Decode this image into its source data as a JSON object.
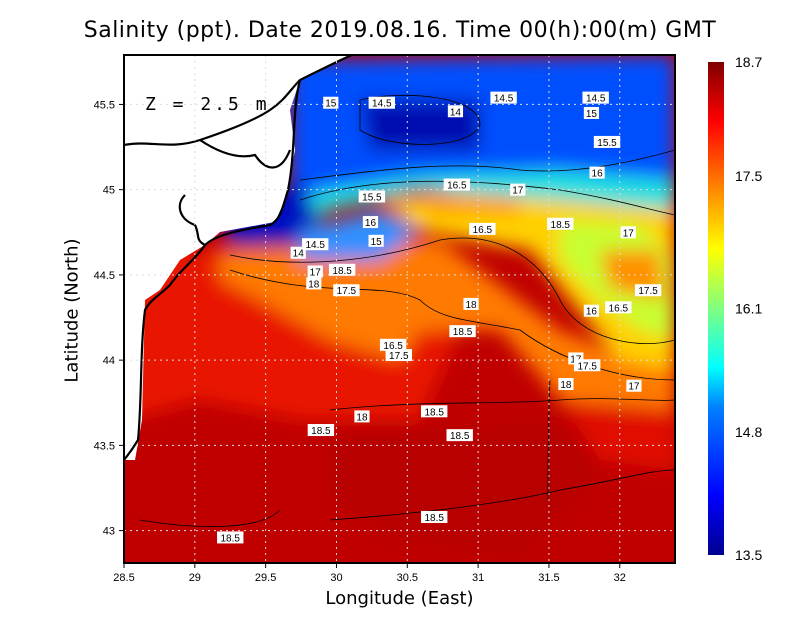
{
  "chart_data": {
    "type": "heatmap",
    "title": "Salinity (ppt). Date 2019.08.16. Time 00(h):00(m) GMT",
    "xlabel": "Longitude (East)",
    "ylabel": "Latitude (North)",
    "annotation": "Z = 2.5 m",
    "xlim": [
      28.5,
      32.39
    ],
    "ylim": [
      42.81,
      45.79
    ],
    "xticks": [
      "28.5",
      "29",
      "29.5",
      "30",
      "30.5",
      "31",
      "31.5",
      "32"
    ],
    "yticks": [
      "43",
      "43.5",
      "44",
      "44.5",
      "45",
      "45.5"
    ],
    "grid": true,
    "colorbar": {
      "range": [
        13.5,
        18.7
      ],
      "tick_labels": [
        "18.7",
        "17.5",
        "16.1",
        "14.8",
        "13.5"
      ],
      "colormap": [
        "#00008f",
        "#0000ff",
        "#0080ff",
        "#00ffff",
        "#80ff80",
        "#ffff00",
        "#ff8000",
        "#ff0000",
        "#800000"
      ]
    },
    "contour_labels": [
      {
        "text": "15",
        "lon": 29.96,
        "lat": 45.51
      },
      {
        "text": "14.5",
        "lon": 30.32,
        "lat": 45.51
      },
      {
        "text": "14",
        "lon": 30.84,
        "lat": 45.46
      },
      {
        "text": "14.5",
        "lon": 31.18,
        "lat": 45.54
      },
      {
        "text": "14.5",
        "lon": 31.83,
        "lat": 45.54
      },
      {
        "text": "15",
        "lon": 31.8,
        "lat": 45.45
      },
      {
        "text": "15.5",
        "lon": 31.91,
        "lat": 45.28
      },
      {
        "text": "16",
        "lon": 31.84,
        "lat": 45.1
      },
      {
        "text": "16.5",
        "lon": 30.85,
        "lat": 45.03
      },
      {
        "text": "17",
        "lon": 31.28,
        "lat": 45.0
      },
      {
        "text": "15.5",
        "lon": 30.25,
        "lat": 44.96
      },
      {
        "text": "16",
        "lon": 30.24,
        "lat": 44.81
      },
      {
        "text": "15",
        "lon": 30.28,
        "lat": 44.7
      },
      {
        "text": "16.5",
        "lon": 31.03,
        "lat": 44.77
      },
      {
        "text": "18.5",
        "lon": 31.58,
        "lat": 44.8
      },
      {
        "text": "17",
        "lon": 32.06,
        "lat": 44.75
      },
      {
        "text": "14.5",
        "lon": 29.85,
        "lat": 44.68
      },
      {
        "text": "14",
        "lon": 29.73,
        "lat": 44.63
      },
      {
        "text": "17",
        "lon": 29.85,
        "lat": 44.52
      },
      {
        "text": "18.5",
        "lon": 30.04,
        "lat": 44.53
      },
      {
        "text": "18",
        "lon": 29.84,
        "lat": 44.45
      },
      {
        "text": "17.5",
        "lon": 30.07,
        "lat": 44.41
      },
      {
        "text": "18",
        "lon": 30.95,
        "lat": 44.33
      },
      {
        "text": "16",
        "lon": 31.8,
        "lat": 44.29
      },
      {
        "text": "16.5",
        "lon": 31.99,
        "lat": 44.31
      },
      {
        "text": "17.5",
        "lon": 32.2,
        "lat": 44.41
      },
      {
        "text": "18.5",
        "lon": 30.89,
        "lat": 44.17
      },
      {
        "text": "16.5",
        "lon": 30.4,
        "lat": 44.09
      },
      {
        "text": "17.5",
        "lon": 30.44,
        "lat": 44.03
      },
      {
        "text": "17",
        "lon": 31.69,
        "lat": 44.01
      },
      {
        "text": "17.5",
        "lon": 31.77,
        "lat": 43.97
      },
      {
        "text": "17",
        "lon": 32.1,
        "lat": 43.85
      },
      {
        "text": "18",
        "lon": 31.62,
        "lat": 43.86
      },
      {
        "text": "18",
        "lon": 30.18,
        "lat": 43.67
      },
      {
        "text": "18.5",
        "lon": 30.69,
        "lat": 43.7
      },
      {
        "text": "18.5",
        "lon": 29.89,
        "lat": 43.59
      },
      {
        "text": "18.5",
        "lon": 30.87,
        "lat": 43.56
      },
      {
        "text": "18.5",
        "lon": 30.69,
        "lat": 43.08
      },
      {
        "text": "18.5",
        "lon": 29.25,
        "lat": 42.96
      }
    ]
  }
}
